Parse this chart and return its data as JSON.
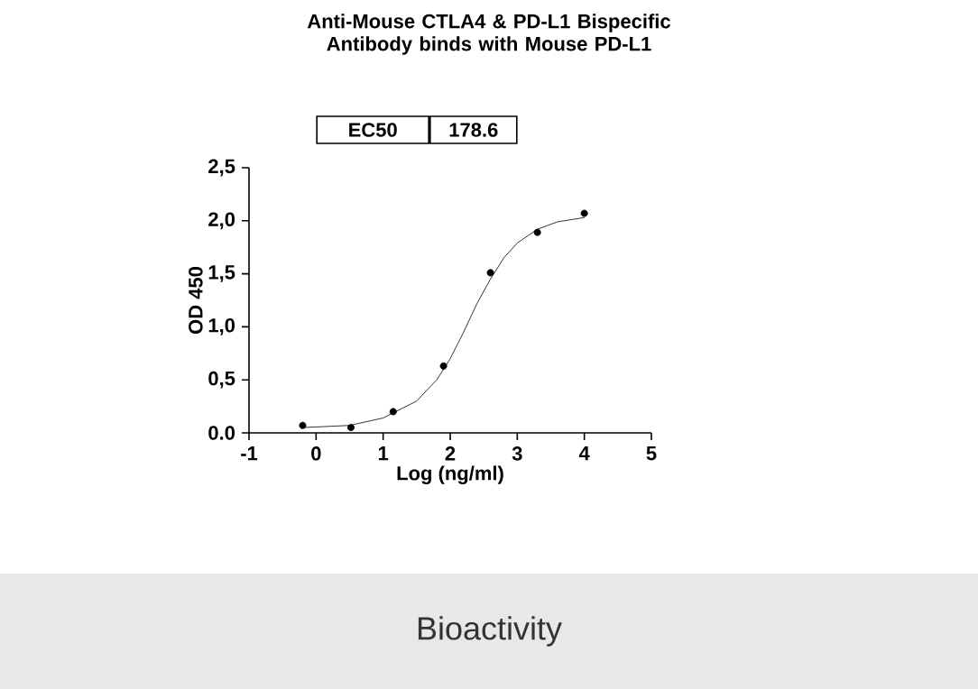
{
  "chart_data": {
    "type": "scatter",
    "title": "Anti-Mouse CTLA4 & PD-L1 Bispecific Antibody binds with Mouse PD-L1",
    "xlabel": "Log (ng/ml)",
    "ylabel": "OD 450",
    "xlim": [
      -1,
      5
    ],
    "ylim": [
      0,
      2.5
    ],
    "xticks": [
      -1,
      0,
      1,
      2,
      3,
      4,
      5
    ],
    "yticks": [
      {
        "value": 0,
        "label": "0.0"
      },
      {
        "value": 0.5,
        "label": "0,5"
      },
      {
        "value": 1,
        "label": "1,0"
      },
      {
        "value": 1.5,
        "label": "1,5"
      },
      {
        "value": 2,
        "label": "2,0"
      },
      {
        "value": 2.5,
        "label": "2,5"
      }
    ],
    "annotations": [
      "EC50",
      "178.6",
      "Bioactivity"
    ],
    "series": [
      {
        "marker": "circle",
        "color": "#000000",
        "x": [
          -0.2,
          0.52,
          1.15,
          1.9,
          2.6,
          3.3,
          4.0
        ],
        "values": [
          0.07,
          0.05,
          0.2,
          0.63,
          1.51,
          1.89,
          2.07
        ]
      },
      {
        "type": "line",
        "marker": "none",
        "line_style": "solid",
        "color": "#000000",
        "x": [
          -0.2,
          0.5,
          1,
          1.5,
          1.8,
          2,
          2.2,
          2.4,
          2.6,
          2.8,
          3,
          3.3,
          3.6,
          4
        ],
        "values": [
          0.05,
          0.07,
          0.14,
          0.3,
          0.5,
          0.7,
          0.95,
          1.22,
          1.45,
          1.65,
          1.79,
          1.92,
          1.99,
          2.03
        ]
      }
    ]
  }
}
